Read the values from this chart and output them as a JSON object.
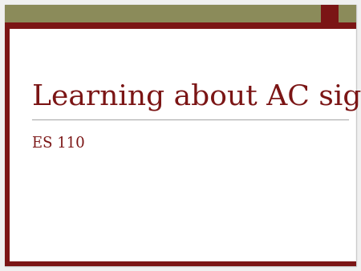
{
  "title": "Learning about AC signals",
  "subtitle": "ES 110",
  "bg_color": "#ffffff",
  "outer_bg": "#f0f0f0",
  "title_color": "#7B1515",
  "subtitle_color": "#7B1515",
  "olive_color": "#8B8B5A",
  "darkred_color": "#7B1515",
  "divider_color": "#aaaaaa",
  "border_outer_color": "#cccccc",
  "title_fontsize": 26,
  "subtitle_fontsize": 13
}
